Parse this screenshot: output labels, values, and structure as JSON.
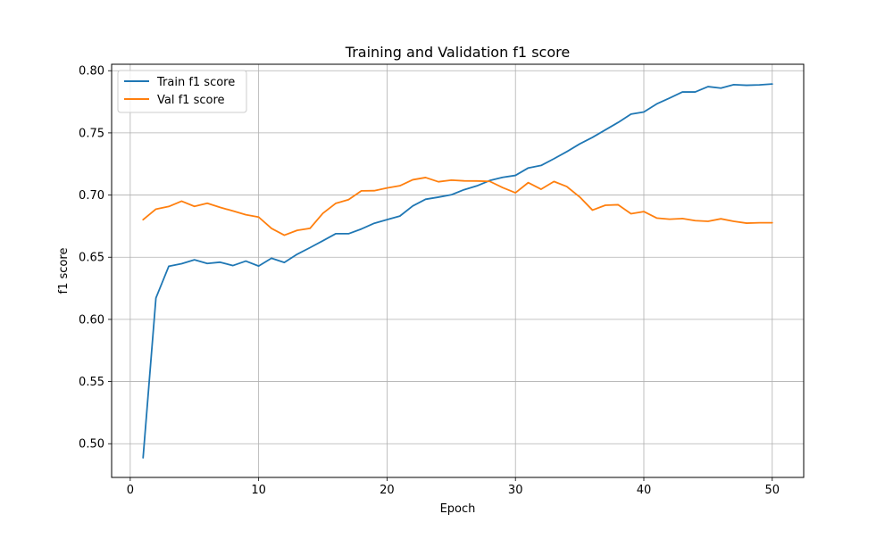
{
  "chart_data": {
    "type": "line",
    "title": "Training and Validation f1 score",
    "xlabel": "Epoch",
    "ylabel": "f1 score",
    "xlim": [
      -1.45,
      52.45
    ],
    "ylim": [
      0.4729,
      0.8052
    ],
    "xticks": [
      0,
      10,
      20,
      30,
      40,
      50
    ],
    "yticks": [
      0.5,
      0.55,
      0.6,
      0.65,
      0.7,
      0.75,
      0.8
    ],
    "grid": true,
    "legend_position": "upper-left",
    "x": [
      1,
      2,
      3,
      4,
      5,
      6,
      7,
      8,
      9,
      10,
      11,
      12,
      13,
      14,
      15,
      16,
      17,
      18,
      19,
      20,
      21,
      22,
      23,
      24,
      25,
      26,
      27,
      28,
      29,
      30,
      31,
      32,
      33,
      34,
      35,
      36,
      37,
      38,
      39,
      40,
      41,
      42,
      43,
      44,
      45,
      46,
      47,
      48,
      49,
      50
    ],
    "series": [
      {
        "name": "Train f1 score",
        "color": "#1f77b4",
        "values": [
          0.4887,
          0.6172,
          0.6427,
          0.6448,
          0.6479,
          0.645,
          0.646,
          0.6433,
          0.6469,
          0.6429,
          0.6492,
          0.6458,
          0.6524,
          0.6577,
          0.6632,
          0.6689,
          0.6689,
          0.6727,
          0.6773,
          0.6802,
          0.6831,
          0.6912,
          0.6966,
          0.6983,
          0.7002,
          0.7043,
          0.7074,
          0.7117,
          0.7142,
          0.7158,
          0.7218,
          0.7238,
          0.7292,
          0.7349,
          0.7411,
          0.7464,
          0.7524,
          0.7584,
          0.7651,
          0.7668,
          0.7733,
          0.778,
          0.7829,
          0.7829,
          0.7872,
          0.786,
          0.7888,
          0.7883,
          0.7886,
          0.7893
        ]
      },
      {
        "name": "Val f1 score",
        "color": "#ff7f0e",
        "values": [
          0.6802,
          0.6887,
          0.6908,
          0.6951,
          0.6909,
          0.6934,
          0.6901,
          0.6872,
          0.6842,
          0.6823,
          0.6732,
          0.6677,
          0.6716,
          0.6732,
          0.6853,
          0.6933,
          0.6963,
          0.7034,
          0.7035,
          0.7057,
          0.7075,
          0.7123,
          0.7141,
          0.7107,
          0.712,
          0.7114,
          0.7113,
          0.711,
          0.706,
          0.7018,
          0.71,
          0.7047,
          0.7109,
          0.7068,
          0.6985,
          0.6879,
          0.6918,
          0.6922,
          0.685,
          0.6867,
          0.6815,
          0.6806,
          0.6811,
          0.6794,
          0.6789,
          0.6809,
          0.6789,
          0.6774,
          0.6777,
          0.6777
        ]
      }
    ]
  }
}
